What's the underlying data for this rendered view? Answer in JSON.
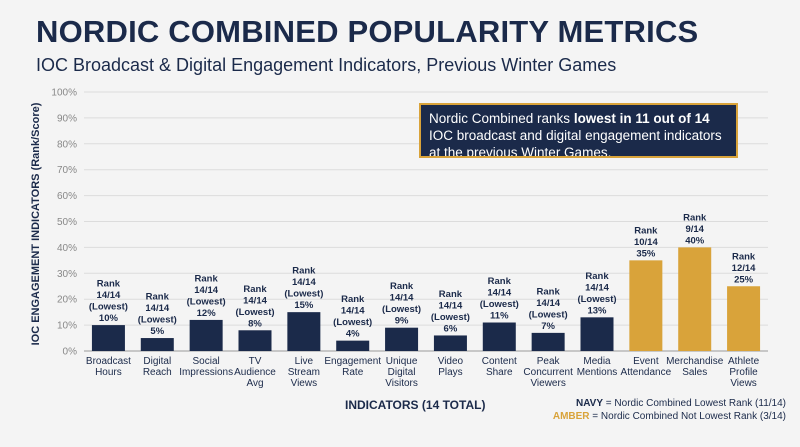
{
  "header": {
    "title": "NORDIC COMBINED POPULARITY METRICS",
    "subtitle": "IOC Broadcast & Digital Engagement Indicators, Previous Winter Games"
  },
  "callout": {
    "pre": "Nordic Combined ranks ",
    "bold": "lowest in 11 out of 14",
    "post": " IOC broadcast and digital engagement indicators at the previous Winter Games."
  },
  "legend": {
    "navy_key": "NAVY",
    "navy_text": " = Nordic Combined Lowest Rank (11/14)",
    "amber_key": "AMBER",
    "amber_text": " = Nordic Combined Not Lowest Rank (3/14)"
  },
  "colors": {
    "navy": "#1b2a4a",
    "amber": "#d9a33a",
    "grid": "#dcdcdc",
    "axis": "#9a9a9a"
  },
  "chart_data": {
    "type": "bar",
    "title": "NORDIC COMBINED POPULARITY METRICS",
    "subtitle": "IOC Broadcast & Digital Engagement Indicators, Previous Winter Games",
    "xlabel": "INDICATORS (14 TOTAL)",
    "ylabel": "IOC ENGAGEMENT INDICATORS (Rank/Score)",
    "ylim": [
      0,
      100
    ],
    "yticks": [
      "0%",
      "10%",
      "20%",
      "30%",
      "40%",
      "50%",
      "60%",
      "70%",
      "80%",
      "90%",
      "100%"
    ],
    "grid": true,
    "categories": [
      [
        "Broadcast",
        "Hours"
      ],
      [
        "Digital",
        "Reach"
      ],
      [
        "Social",
        "Impressions"
      ],
      [
        "TV",
        "Audience",
        "Avg"
      ],
      [
        "Live",
        "Stream",
        "Views"
      ],
      [
        "Engagement",
        "Rate"
      ],
      [
        "Unique",
        "Digital",
        "Visitors"
      ],
      [
        "Video",
        "Plays"
      ],
      [
        "Content",
        "Share"
      ],
      [
        "Peak",
        "Concurrent",
        "Viewers"
      ],
      [
        "Media",
        "Mentions"
      ],
      [
        "Event",
        "Attendance"
      ],
      [
        "Merchandise",
        "Sales"
      ],
      [
        "Athlete",
        "Profile",
        "Views"
      ]
    ],
    "values": [
      10,
      5,
      12,
      8,
      15,
      4,
      9,
      6,
      11,
      7,
      13,
      35,
      40,
      25
    ],
    "labels": [
      [
        "Rank",
        "14/14",
        "(Lowest)",
        "10%"
      ],
      [
        "Rank",
        "14/14",
        "(Lowest)",
        "5%"
      ],
      [
        "Rank",
        "14/14",
        "(Lowest)",
        "12%"
      ],
      [
        "Rank",
        "14/14",
        "(Lowest)",
        "8%"
      ],
      [
        "Rank",
        "14/14",
        "(Lowest)",
        "15%"
      ],
      [
        "Rank",
        "14/14",
        "(Lowest)",
        "4%"
      ],
      [
        "Rank",
        "14/14",
        "(Lowest)",
        "9%"
      ],
      [
        "Rank",
        "14/14",
        "(Lowest)",
        "6%"
      ],
      [
        "Rank",
        "14/14",
        "(Lowest)",
        "11%"
      ],
      [
        "Rank",
        "14/14",
        "(Lowest)",
        "7%"
      ],
      [
        "Rank",
        "14/14",
        "(Lowest)",
        "13%"
      ],
      [
        "Rank",
        "10/14",
        "35%"
      ],
      [
        "Rank",
        "9/14",
        "40%"
      ],
      [
        "Rank",
        "12/14",
        "25%"
      ]
    ],
    "bar_colors": [
      "navy",
      "navy",
      "navy",
      "navy",
      "navy",
      "navy",
      "navy",
      "navy",
      "navy",
      "navy",
      "navy",
      "amber",
      "amber",
      "amber"
    ]
  }
}
